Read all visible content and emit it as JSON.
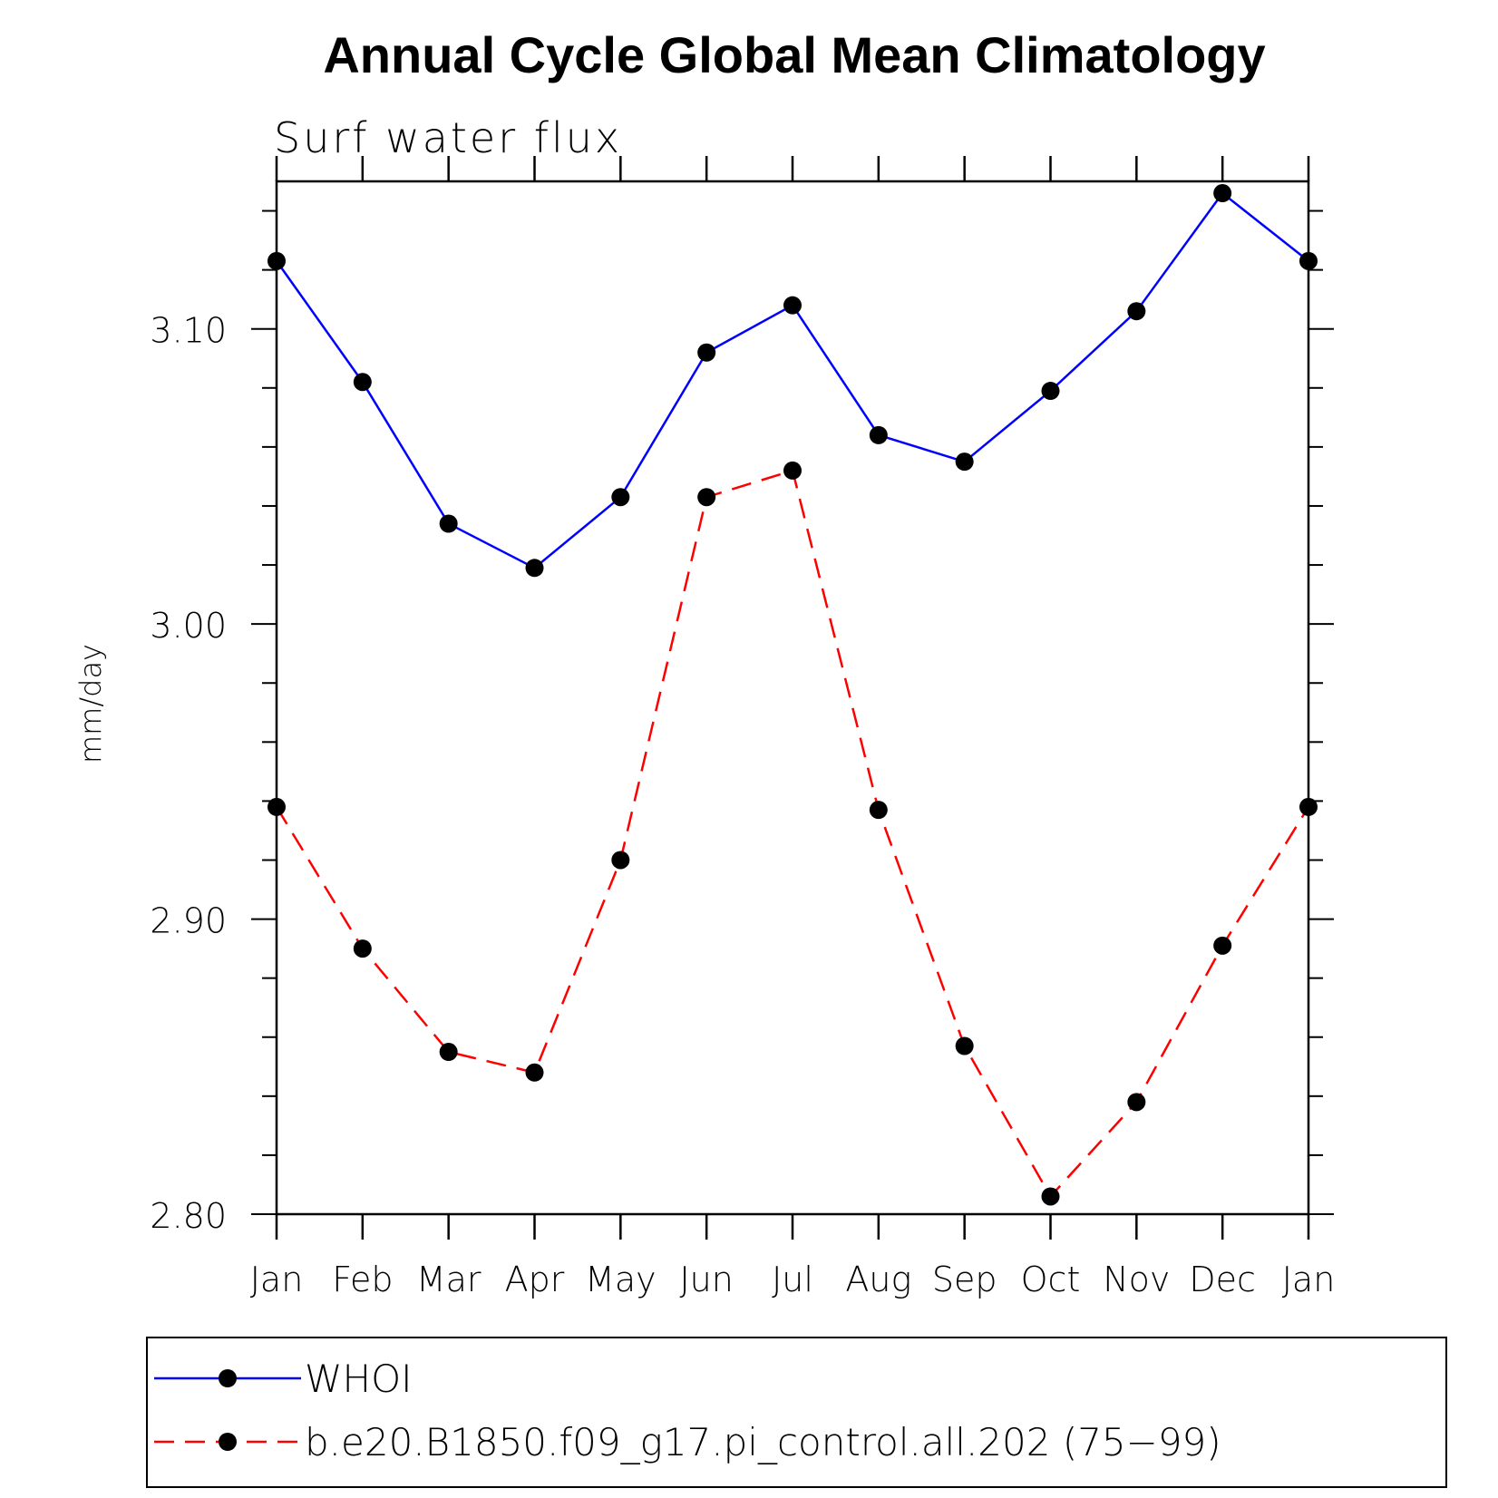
{
  "chart_data": {
    "type": "line",
    "title": "Annual Cycle Global Mean Climatology",
    "subtitle": "Surf  water  flux",
    "ylabel": "mm/day",
    "xlabel": "",
    "categories": [
      "Jan",
      "Feb",
      "Mar",
      "Apr",
      "May",
      "Jun",
      "Jul",
      "Aug",
      "Sep",
      "Oct",
      "Nov",
      "Dec",
      "Jan"
    ],
    "ylim": [
      2.8,
      3.15
    ],
    "yticks": [
      "2.80",
      "2.90",
      "3.00",
      "3.10"
    ],
    "grid": false,
    "legend_position": "bottom",
    "series": [
      {
        "name": "WHOI",
        "color": "#0000ff",
        "line_style": "solid",
        "marker": "filled-circle",
        "values": [
          3.123,
          3.082,
          3.034,
          3.019,
          3.043,
          3.092,
          3.108,
          3.064,
          3.055,
          3.079,
          3.106,
          3.146,
          3.123
        ]
      },
      {
        "name": "b.e20.B1850.f09_g17.pi_control.all.202 (75−99)",
        "color": "#ff0000",
        "line_style": "dashed",
        "marker": "filled-circle",
        "values": [
          2.938,
          2.89,
          2.855,
          2.848,
          2.92,
          3.043,
          3.052,
          2.937,
          2.857,
          2.806,
          2.838,
          2.891,
          2.938
        ]
      }
    ]
  }
}
